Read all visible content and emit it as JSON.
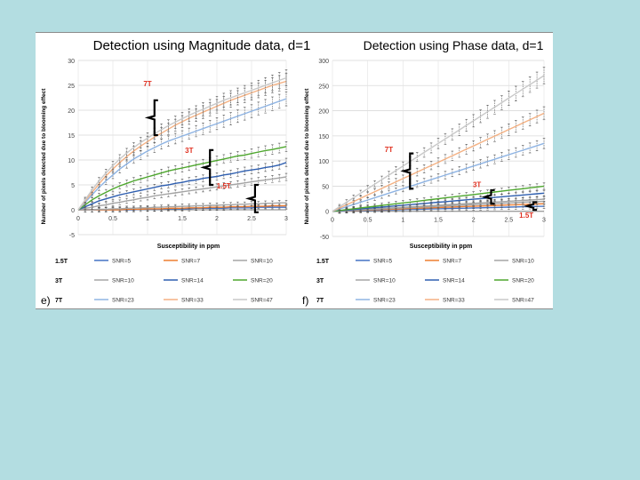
{
  "colors": {
    "background": "#b3dde1",
    "series": {
      "SNR=5": "#4472c4",
      "SNR=7": "#ed7d31",
      "SNR=10": "#a5a5a5",
      "SNR=14": "#2f5fb0",
      "SNR=20": "#4ea72e",
      "SNR=23": "#8fb4e3",
      "SNR=33": "#f4b183",
      "SNR=47": "#c9c9c9"
    },
    "field_label": "#e03020",
    "bracket": "#000000"
  },
  "legend_groups": [
    {
      "group": "1.5T",
      "entries": [
        "SNR=5",
        "SNR=7",
        "SNR=10"
      ]
    },
    {
      "group": "3T",
      "entries": [
        "SNR=10",
        "SNR=14",
        "SNR=20"
      ]
    },
    {
      "group": "7T",
      "entries": [
        "SNR=23",
        "SNR=33",
        "SNR=47"
      ]
    }
  ],
  "chart_data": [
    {
      "panel_label": "e)",
      "type": "line",
      "title": "Detection using Magnitude data, d=1",
      "xlabel": "Susceptibility in ppm",
      "ylabel": "Number of pixels detected due to blooming effect",
      "xlim": [
        0,
        3
      ],
      "ylim": [
        -5,
        30
      ],
      "xticks": [
        0,
        0.5,
        1,
        1.5,
        2,
        2.5,
        3
      ],
      "xtick_labels": [
        "0",
        "0.5",
        "1",
        "1.5",
        "2",
        "2.5",
        "3"
      ],
      "yticks": [
        -5,
        0,
        5,
        10,
        15,
        20,
        25,
        30
      ],
      "ytick_labels": [
        "-5",
        "0",
        "5",
        "10",
        "15",
        "20",
        "25",
        "30"
      ],
      "grid": true,
      "error_bars": true,
      "x": [
        0,
        0.1,
        0.2,
        0.3,
        0.4,
        0.5,
        0.6,
        0.7,
        0.8,
        0.9,
        1,
        1.1,
        1.2,
        1.3,
        1.4,
        1.5,
        1.6,
        1.7,
        1.8,
        1.9,
        2,
        2.1,
        2.2,
        2.3,
        2.4,
        2.5,
        2.6,
        2.7,
        2.8,
        2.9,
        3
      ],
      "series": [
        {
          "name": "SNR=5",
          "group": "1.5T",
          "values": [
            0,
            0,
            0,
            0,
            0,
            0,
            0,
            0,
            0,
            0.1,
            0.1,
            0.1,
            0.1,
            0.2,
            0.2,
            0.2,
            0.2,
            0.3,
            0.3,
            0.3,
            0.3,
            0.3,
            0.4,
            0.4,
            0.4,
            0.4,
            0.5,
            0.5,
            0.5,
            0.5,
            0.5
          ]
        },
        {
          "name": "SNR=7",
          "group": "1.5T",
          "values": [
            0,
            0,
            0,
            0,
            0,
            0,
            0,
            0.1,
            0.1,
            0.1,
            0.2,
            0.2,
            0.2,
            0.3,
            0.3,
            0.3,
            0.4,
            0.4,
            0.4,
            0.5,
            0.5,
            0.5,
            0.6,
            0.6,
            0.6,
            0.7,
            0.7,
            0.7,
            0.8,
            0.8,
            0.8
          ]
        },
        {
          "name": "SNR=10",
          "group": "1.5T",
          "values": [
            0,
            0,
            0,
            0.1,
            0.1,
            0.2,
            0.2,
            0.3,
            0.3,
            0.4,
            0.4,
            0.5,
            0.5,
            0.6,
            0.6,
            0.7,
            0.7,
            0.8,
            0.8,
            0.9,
            0.9,
            1,
            1,
            1.1,
            1.1,
            1.2,
            1.2,
            1.3,
            1.3,
            1.4,
            1.4
          ]
        },
        {
          "name": "SNR=10",
          "group": "3T",
          "values": [
            0,
            0.3,
            0.5,
            0.8,
            1,
            1.3,
            1.5,
            1.8,
            2,
            2.3,
            2.5,
            2.8,
            3,
            3.2,
            3.4,
            3.6,
            3.8,
            4,
            4.2,
            4.4,
            4.6,
            4.8,
            5,
            5.2,
            5.4,
            5.6,
            5.8,
            6,
            6.2,
            6.4,
            6.6
          ]
        },
        {
          "name": "SNR=14",
          "group": "3T",
          "values": [
            0,
            0.6,
            1.2,
            1.8,
            2.2,
            2.6,
            3,
            3.3,
            3.6,
            3.9,
            4.2,
            4.5,
            4.8,
            5,
            5.3,
            5.5,
            5.8,
            6,
            6.3,
            6.5,
            6.7,
            7,
            7.2,
            7.5,
            7.8,
            8,
            8.2,
            8.5,
            8.7,
            9,
            9.5
          ]
        },
        {
          "name": "SNR=20",
          "group": "3T",
          "values": [
            0,
            1,
            2,
            2.8,
            3.5,
            4.2,
            4.8,
            5.3,
            5.8,
            6.2,
            6.6,
            7,
            7.4,
            7.8,
            8.1,
            8.4,
            8.7,
            9,
            9.3,
            9.6,
            9.9,
            10.2,
            10.5,
            10.8,
            11,
            11.3,
            11.6,
            11.9,
            12.1,
            12.4,
            12.7
          ]
        },
        {
          "name": "SNR=23",
          "group": "7T",
          "values": [
            0,
            1.5,
            3,
            4.5,
            5.8,
            7,
            8.2,
            9.2,
            10.2,
            11,
            11.8,
            12.5,
            13.2,
            13.8,
            14.3,
            14.8,
            15.3,
            15.8,
            16.3,
            16.8,
            17.3,
            17.8,
            18.3,
            18.8,
            19.3,
            19.8,
            20.3,
            20.8,
            21.3,
            21.8,
            22.3
          ]
        },
        {
          "name": "SNR=33",
          "group": "7T",
          "values": [
            0,
            1.8,
            3.5,
            5.2,
            6.8,
            8.2,
            9.5,
            10.7,
            11.8,
            12.8,
            13.7,
            14.6,
            15.4,
            16.2,
            17,
            17.7,
            18.4,
            19,
            19.6,
            20.2,
            20.8,
            21.4,
            22,
            22.5,
            23,
            23.5,
            24,
            24.5,
            25,
            25.4,
            25.8
          ]
        },
        {
          "name": "SNR=47",
          "group": "7T",
          "values": [
            0,
            2,
            4,
            5.8,
            7.4,
            8.9,
            10.2,
            11.4,
            12.5,
            13.5,
            14.4,
            15.3,
            16.1,
            16.9,
            17.6,
            18.3,
            19,
            19.6,
            20.2,
            20.8,
            21.4,
            22,
            22.5,
            23,
            23.5,
            24,
            24.5,
            25,
            25.5,
            26,
            26.5
          ]
        }
      ],
      "annotations": [
        {
          "text": "7T",
          "x": 1.0,
          "y": 24.8
        },
        {
          "text": "3T",
          "x": 1.6,
          "y": 11.4
        },
        {
          "text": "1.5T",
          "x": 2.1,
          "y": 4.3
        }
      ],
      "brackets": [
        {
          "field": "7T",
          "x": 1.1,
          "y_low": 15,
          "y_high": 22
        },
        {
          "field": "3T",
          "x": 1.9,
          "y_low": 5,
          "y_high": 12
        },
        {
          "field": "1.5T",
          "x": 2.55,
          "y_low": -0.5,
          "y_high": 5
        }
      ]
    },
    {
      "panel_label": "f)",
      "type": "line",
      "title": "Detection using Phase data, d=1",
      "xlabel": "Susceptibility in ppm",
      "ylabel": "Number of pixels detected due to blooming effect",
      "xlim": [
        0,
        3
      ],
      "ylim": [
        -50,
        300
      ],
      "xticks": [
        0,
        0.5,
        1,
        1.5,
        2,
        2.5,
        3
      ],
      "xtick_labels": [
        "0",
        "0.5",
        "1",
        "1.5",
        "2",
        "2.5",
        "3"
      ],
      "yticks": [
        -50,
        0,
        50,
        100,
        150,
        200,
        250,
        300
      ],
      "ytick_labels": [
        "-50",
        "0",
        "50",
        "100",
        "150",
        "200",
        "250",
        "300"
      ],
      "grid": true,
      "error_bars": true,
      "x": [
        0,
        0.1,
        0.2,
        0.3,
        0.4,
        0.5,
        0.6,
        0.7,
        0.8,
        0.9,
        1,
        1.1,
        1.2,
        1.3,
        1.4,
        1.5,
        1.6,
        1.7,
        1.8,
        1.9,
        2,
        2.1,
        2.2,
        2.3,
        2.4,
        2.5,
        2.6,
        2.7,
        2.8,
        2.9,
        3
      ],
      "series": [
        {
          "name": "SNR=5",
          "group": "1.5T",
          "values": [
            0,
            0.3,
            0.7,
            1,
            1.3,
            1.7,
            2,
            2.3,
            2.7,
            3,
            3.3,
            3.7,
            4,
            4.3,
            4.7,
            5,
            5.3,
            5.7,
            6,
            6.3,
            6.7,
            7,
            7.3,
            7.7,
            8,
            8.3,
            8.7,
            9,
            9.3,
            9.7,
            10
          ]
        },
        {
          "name": "SNR=7",
          "group": "1.5T",
          "values": [
            0,
            0.5,
            1,
            1.5,
            2,
            2.5,
            3,
            3.5,
            4,
            4.5,
            5,
            5.5,
            6,
            6.5,
            7,
            7.5,
            8,
            8.5,
            9,
            9.5,
            10,
            10.5,
            11,
            11.5,
            12,
            12.5,
            13,
            13.5,
            14,
            14.5,
            15
          ]
        },
        {
          "name": "SNR=10",
          "group": "1.5T",
          "values": [
            0,
            0.7,
            1.3,
            2,
            2.7,
            3.3,
            4,
            4.7,
            5.3,
            6,
            6.7,
            7.3,
            8,
            8.7,
            9.3,
            10,
            10.7,
            11.3,
            12,
            12.7,
            13.3,
            14,
            14.7,
            15.3,
            16,
            16.7,
            17.3,
            18,
            18.7,
            19.3,
            20
          ]
        },
        {
          "name": "SNR=10",
          "group": "3T",
          "values": [
            0,
            0.8,
            1.6,
            2.4,
            3.2,
            4,
            4.8,
            5.6,
            6.4,
            7.2,
            8,
            8.8,
            9.6,
            10.4,
            11.2,
            12,
            12.8,
            13.6,
            14.4,
            15.2,
            16,
            16.8,
            17.6,
            18.4,
            19.2,
            20,
            20.8,
            21.6,
            22.4,
            23.2,
            24
          ]
        },
        {
          "name": "SNR=14",
          "group": "3T",
          "values": [
            0,
            1.2,
            2.4,
            3.6,
            4.8,
            6,
            7.2,
            8.4,
            9.6,
            10.8,
            12,
            13.2,
            14.4,
            15.6,
            16.8,
            18,
            19.2,
            20.4,
            21.6,
            22.8,
            24,
            25.2,
            26.4,
            27.6,
            28.8,
            30,
            31.2,
            32.4,
            33.6,
            34.8,
            36
          ]
        },
        {
          "name": "SNR=20",
          "group": "3T",
          "values": [
            0,
            1.7,
            3.3,
            5,
            6.7,
            8.3,
            10,
            11.7,
            13.3,
            15,
            16.7,
            18.3,
            20,
            21.7,
            23.3,
            25,
            26.7,
            28.3,
            30,
            31.7,
            33.3,
            35,
            36.7,
            38.3,
            40,
            41.7,
            43.3,
            45,
            46.7,
            48.3,
            50
          ]
        },
        {
          "name": "SNR=23",
          "group": "7T",
          "values": [
            0,
            4.5,
            9,
            13.5,
            18,
            22.5,
            27,
            31.5,
            36,
            40.5,
            45,
            49.5,
            54,
            58.5,
            63,
            67.5,
            72,
            76.5,
            81,
            85.5,
            90,
            94.5,
            99,
            103.5,
            108,
            112.5,
            117,
            121.5,
            126,
            130.5,
            135
          ]
        },
        {
          "name": "SNR=33",
          "group": "7T",
          "values": [
            0,
            6.5,
            13,
            19.5,
            26,
            32.5,
            39,
            45.5,
            52,
            58.5,
            65,
            71.5,
            78,
            84.5,
            91,
            97.5,
            104,
            110.5,
            117,
            123.5,
            130,
            136.5,
            143,
            149.5,
            156,
            162.5,
            169,
            175.5,
            182,
            188.5,
            195
          ]
        },
        {
          "name": "SNR=47",
          "group": "7T",
          "values": [
            0,
            9,
            18,
            27,
            36,
            45,
            54,
            63,
            72,
            81,
            90,
            99,
            108,
            117,
            126,
            135,
            144,
            153,
            162,
            171,
            180,
            189,
            198,
            207,
            216,
            225,
            234,
            243,
            252,
            261,
            270
          ]
        }
      ],
      "annotations": [
        {
          "text": "7T",
          "x": 0.8,
          "y": 118
        },
        {
          "text": "3T",
          "x": 2.05,
          "y": 48
        },
        {
          "text": "1.5T",
          "x": 2.75,
          "y": -13
        }
      ],
      "brackets": [
        {
          "field": "7T",
          "x": 1.1,
          "y_low": 45,
          "y_high": 115
        },
        {
          "field": "3T",
          "x": 2.25,
          "y_low": 15,
          "y_high": 42
        },
        {
          "field": "1.5T",
          "x": 2.85,
          "y_low": 3,
          "y_high": 18
        }
      ]
    }
  ]
}
